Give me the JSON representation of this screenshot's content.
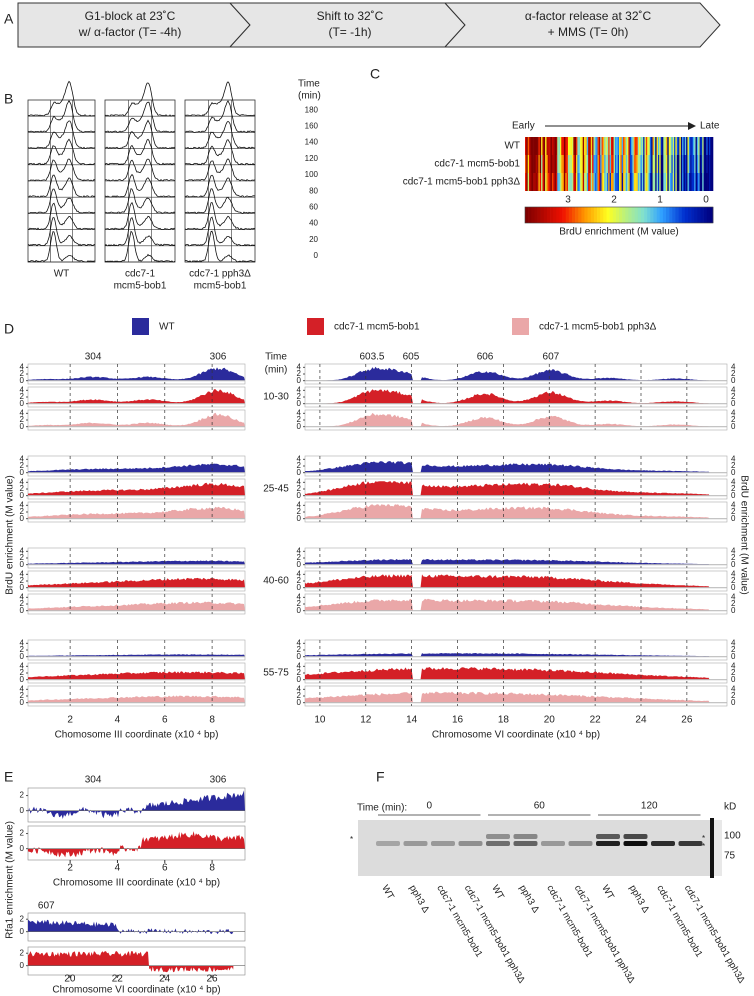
{
  "panel_a": {
    "label": "A",
    "steps": [
      [
        "G1-block at 23˚C",
        "w/ α-factor  (T= -4h)"
      ],
      [
        "Shift to 32˚C",
        "(T= -1h)"
      ],
      [
        "α-factor release at 32˚C",
        "+ MMS  (T= 0h)"
      ]
    ]
  },
  "panel_b": {
    "label": "B",
    "time_header": [
      "Time",
      "(min)"
    ],
    "times": [
      180,
      160,
      140,
      120,
      100,
      80,
      60,
      40,
      20,
      0
    ],
    "strains": [
      [
        "WT"
      ],
      [
        "cdc7-1",
        "mcm5-bob1"
      ],
      [
        "cdc7-1 pph3Δ",
        "mcm5-bob1"
      ]
    ]
  },
  "panel_c": {
    "label": "C",
    "early": "Early",
    "late": "Late",
    "rows": [
      "WT",
      "cdc7-1 mcm5-bob1",
      "cdc7-1 mcm5-bob1 pph3Δ"
    ],
    "scale_ticks": [
      3,
      2,
      1,
      0
    ],
    "scale_label": "BrdU enrichment (M value)"
  },
  "panel_d": {
    "label": "D",
    "legend": [
      {
        "name": "WT",
        "color": "#2b2b9c"
      },
      {
        "name": "cdc7-1 mcm5-bob1",
        "color": "#d42027"
      },
      {
        "name": "cdc7-1 mcm5-bob1 pph3Δ",
        "color": "#eaa7a8"
      }
    ],
    "time_header": [
      "Time",
      "(min)"
    ],
    "windows": [
      "10-30",
      "25-45",
      "40-60",
      "55-75"
    ],
    "ylabel": "BrdU enrichment (M value)",
    "yticks": [
      0,
      2,
      4
    ],
    "ylim": [
      -1,
      5
    ],
    "chr3": {
      "origins": [
        "304",
        "306"
      ],
      "xticks": [
        2,
        4,
        6,
        8
      ],
      "xlim": [
        0.22,
        9.39
      ],
      "xlabel": "Chomosome III coordinate (x10 ⁴ bp)"
    },
    "chr6": {
      "origins": [
        "603.5",
        "605",
        "606",
        "607"
      ],
      "xticks": [
        10,
        12,
        14,
        16,
        18,
        20,
        22,
        24,
        26
      ],
      "xlim": [
        9.35,
        27.75
      ],
      "xlabel": "Chromosome VI coordinate (x10 ⁴ bp)"
    }
  },
  "panel_e": {
    "label": "E",
    "ylabel": "Rfa1 enrichment (M value)",
    "yticks": [
      0,
      2
    ],
    "ylim": [
      -1.5,
      3
    ],
    "chr3": {
      "origins": [
        "304",
        "306"
      ],
      "xticks": [
        2,
        4,
        6,
        8
      ],
      "xlim": [
        0.22,
        9.39
      ],
      "xlabel": "Chromosome III coordinate (x10 ⁴ bp)"
    },
    "chr6": {
      "origins": [
        "607"
      ],
      "xticks": [
        20,
        22,
        24,
        26
      ],
      "xlim": [
        18.23,
        27.39
      ],
      "xlabel": "Chromosome VI coordinate (x10 ⁴ bp)"
    }
  },
  "panel_f": {
    "label": "F",
    "time_label": "Time (min):",
    "times": [
      "0",
      "60",
      "120"
    ],
    "kd": "kD",
    "markers": [
      100,
      75
    ],
    "asterisks": [
      "*",
      "*",
      "*"
    ],
    "lanes": [
      "WT",
      "pph3 Δ",
      "cdc7-1 mcm5-bob1",
      "cdc7-1 mcm5-bob1 pph3Δ",
      "WT",
      "pph3 Δ",
      "cdc7-1 mcm5-bob1",
      "cdc7-1 mcm5-bob1 pph3Δ",
      "WT",
      "pph3 Δ",
      "cdc7-1 mcm5-bob1",
      "cdc7-1 mcm5-bob1 pph3Δ"
    ]
  }
}
